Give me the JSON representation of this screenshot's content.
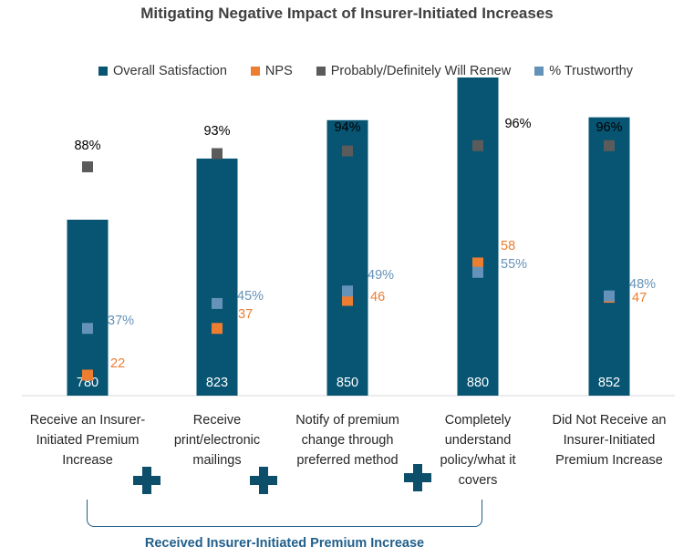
{
  "colors": {
    "bar": "#075573",
    "nps": "#ed7d31",
    "renew": "#5b5b5b",
    "trust": "#6592b8",
    "bracket": "#1f5f8b"
  },
  "chart_data": {
    "type": "bar",
    "title": "Mitigating Negative Impact of Insurer-Initiated Increases",
    "categories": [
      "Receive an Insurer-Initiated Premium Increase",
      "Receive print/electronic mailings",
      "Notify of premium change through preferred method",
      "Completely understand policy/what it covers",
      "Did Not Receive an Insurer-Initiated Premium Increase"
    ],
    "series": [
      {
        "name": "Overall Satisfaction",
        "kind": "bar",
        "values": [
          780,
          823,
          850,
          880,
          852
        ],
        "labels": [
          "780",
          "823",
          "850",
          "880",
          "852"
        ]
      },
      {
        "name": "NPS",
        "kind": "marker",
        "values": [
          22,
          37,
          46,
          58,
          47
        ],
        "labels": [
          "22",
          "37",
          "46",
          "58",
          "47"
        ]
      },
      {
        "name": "Probably/Definitely Will Renew",
        "kind": "marker",
        "values": [
          88,
          93,
          94,
          96,
          96
        ],
        "labels": [
          "88%",
          "93%",
          "94%",
          "96%",
          "96%"
        ]
      },
      {
        "name": "% Trustworthy",
        "kind": "marker",
        "values": [
          37,
          45,
          49,
          55,
          48
        ],
        "labels": [
          "37%",
          "45%",
          "49%",
          "55%",
          "48%"
        ]
      }
    ],
    "legend_position": "top",
    "grid": false
  },
  "category_lines": [
    [
      "Receive an Insurer-",
      "Initiated Premium",
      "Increase"
    ],
    [
      "Receive",
      "print/electronic",
      "mailings"
    ],
    [
      "Notify of premium",
      "change through",
      "preferred method"
    ],
    [
      "Completely",
      "understand",
      "policy/what it",
      "covers"
    ],
    [
      "Did Not Receive an",
      "Insurer-Initiated",
      "Premium Increase"
    ]
  ],
  "group_label": "Received Insurer-Initiated Premium Increase",
  "plus_icon_count": 3
}
